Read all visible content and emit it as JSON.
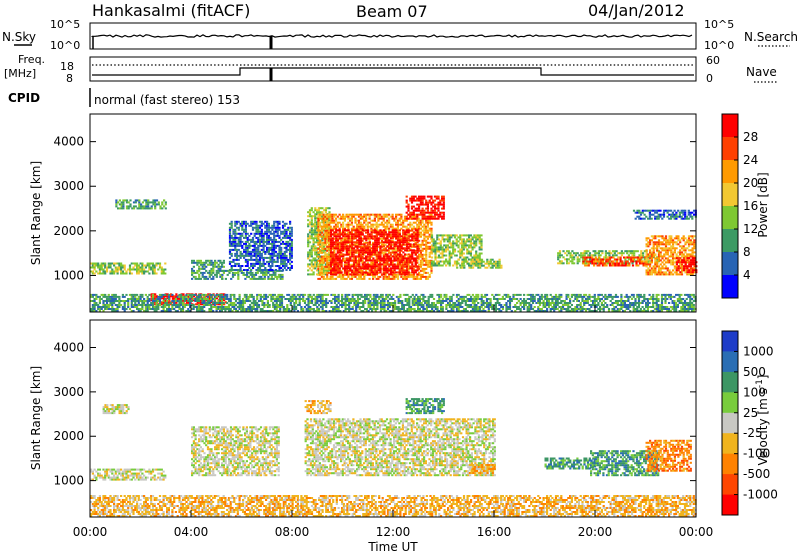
{
  "header": {
    "radar": "Hankasalmi (fitACF)",
    "beam": "Beam 07",
    "date": "04/Jan/2012"
  },
  "top_panels": {
    "noise": {
      "left_label": "N.Sky",
      "right_label": "N.Search",
      "left_ticks": [
        "10^5",
        "10^0"
      ],
      "right_ticks": [
        "10^5",
        "10^0"
      ]
    },
    "freq": {
      "left_label_line1": "Freq.",
      "left_label_line2": "[MHz]",
      "right_label": "Nave",
      "left_ticks": [
        "18",
        "8"
      ],
      "right_ticks": [
        "60",
        "0"
      ]
    },
    "cpid": {
      "label": "CPID",
      "text": "normal (fast stereo) 153"
    }
  },
  "chart_data": [
    {
      "type": "heatmap",
      "name": "power",
      "ylabel": "Slant Range [km]",
      "colorbar_label": "Power [dB]",
      "colorbar_ticks": [
        "28",
        "24",
        "20",
        "16",
        "12",
        "8",
        "4"
      ],
      "colorbar_colors": [
        "#ff0000",
        "#ff4000",
        "#ff9a00",
        "#f2c832",
        "#7ec832",
        "#3c9a64",
        "#2864b4",
        "#0000ff"
      ],
      "ylim": [
        180,
        4620
      ],
      "y_ticks": [
        1000,
        2000,
        3000,
        4000
      ],
      "xlim": [
        0,
        24
      ],
      "regions": [
        {
          "t0": 0.0,
          "t1": 3.0,
          "r0": 1020,
          "r1": 1250,
          "level": 3
        },
        {
          "t0": 1.0,
          "t1": 3.0,
          "r0": 2480,
          "r1": 2680,
          "level": 2
        },
        {
          "t0": 4.0,
          "t1": 5.3,
          "r0": 900,
          "r1": 1350,
          "level": 2
        },
        {
          "t0": 2.4,
          "t1": 5.4,
          "r0": 330,
          "r1": 560,
          "level": 7
        },
        {
          "t0": 5.2,
          "t1": 7.6,
          "r0": 900,
          "r1": 1100,
          "level": 2
        },
        {
          "t0": 5.5,
          "t1": 8.0,
          "r0": 1100,
          "r1": 2200,
          "level": 1
        },
        {
          "t0": 8.6,
          "t1": 9.5,
          "r0": 1000,
          "r1": 2500,
          "level": 3
        },
        {
          "t0": 9.0,
          "t1": 13.5,
          "r0": 900,
          "r1": 2350,
          "level": 5
        },
        {
          "t0": 9.5,
          "t1": 13.0,
          "r0": 1000,
          "r1": 2000,
          "level": 7
        },
        {
          "t0": 12.5,
          "t1": 14.0,
          "r0": 2250,
          "r1": 2750,
          "level": 7
        },
        {
          "t0": 13.5,
          "t1": 15.5,
          "r0": 1200,
          "r1": 1900,
          "level": 3
        },
        {
          "t0": 14.5,
          "t1": 16.3,
          "r0": 1150,
          "r1": 1350,
          "level": 3
        },
        {
          "t0": 18.5,
          "t1": 22.5,
          "r0": 1250,
          "r1": 1550,
          "level": 3
        },
        {
          "t0": 19.5,
          "t1": 22.0,
          "r0": 1200,
          "r1": 1400,
          "level": 6
        },
        {
          "t0": 22.0,
          "t1": 23.9,
          "r0": 1000,
          "r1": 1900,
          "level": 5
        },
        {
          "t0": 23.2,
          "t1": 24.0,
          "r0": 1050,
          "r1": 1400,
          "level": 7
        },
        {
          "t0": 21.5,
          "t1": 24.0,
          "r0": 2250,
          "r1": 2450,
          "level": 1
        },
        {
          "t0": 0.0,
          "t1": 24.0,
          "r0": 180,
          "r1": 560,
          "level": 2
        }
      ]
    },
    {
      "type": "heatmap",
      "name": "velocity",
      "ylabel": "Slant Range [km]",
      "colorbar_label": "Velocity [m s^-1]",
      "colorbar_ticks": [
        "1000",
        "500",
        "100",
        "25",
        "-25",
        "-100",
        "-500",
        "-1000"
      ],
      "colorbar_colors": [
        "#1e3cc8",
        "#2a6eb4",
        "#3c9664",
        "#78cc3c",
        "#c8c8c3",
        "#f0b41e",
        "#ff8200",
        "#ff4600",
        "#ff0000"
      ],
      "ylim": [
        180,
        4620
      ],
      "y_ticks": [
        1000,
        2000,
        3000,
        4000
      ],
      "xlim": [
        0,
        24
      ],
      "regions": [
        {
          "t0": 0.0,
          "t1": 3.0,
          "r0": 1000,
          "r1": 1250,
          "level": 4
        },
        {
          "t0": 0.5,
          "t1": 1.5,
          "r0": 2500,
          "r1": 2700,
          "level": 4
        },
        {
          "t0": 4.0,
          "t1": 7.5,
          "r0": 1100,
          "r1": 2200,
          "level": 4
        },
        {
          "t0": 8.5,
          "t1": 16.0,
          "r0": 1100,
          "r1": 2400,
          "level": 4
        },
        {
          "t0": 12.5,
          "t1": 14.0,
          "r0": 2500,
          "r1": 2850,
          "level": 6
        },
        {
          "t0": 8.5,
          "t1": 9.5,
          "r0": 2500,
          "r1": 2800,
          "level": 3
        },
        {
          "t0": 18.0,
          "t1": 20.0,
          "r0": 1250,
          "r1": 1500,
          "level": 6
        },
        {
          "t0": 19.8,
          "t1": 22.5,
          "r0": 1100,
          "r1": 1650,
          "level": 6
        },
        {
          "t0": 22.0,
          "t1": 23.8,
          "r0": 1200,
          "r1": 1900,
          "level": 2
        },
        {
          "t0": 15.0,
          "t1": 16.0,
          "r0": 1150,
          "r1": 1350,
          "level": 3
        },
        {
          "t0": 0.0,
          "t1": 24.0,
          "r0": 180,
          "r1": 650,
          "level": 3
        }
      ]
    }
  ],
  "x_axis": {
    "label": "Time UT",
    "ticks": [
      "00:00",
      "04:00",
      "08:00",
      "12:00",
      "16:00",
      "20:00",
      "00:00"
    ]
  }
}
